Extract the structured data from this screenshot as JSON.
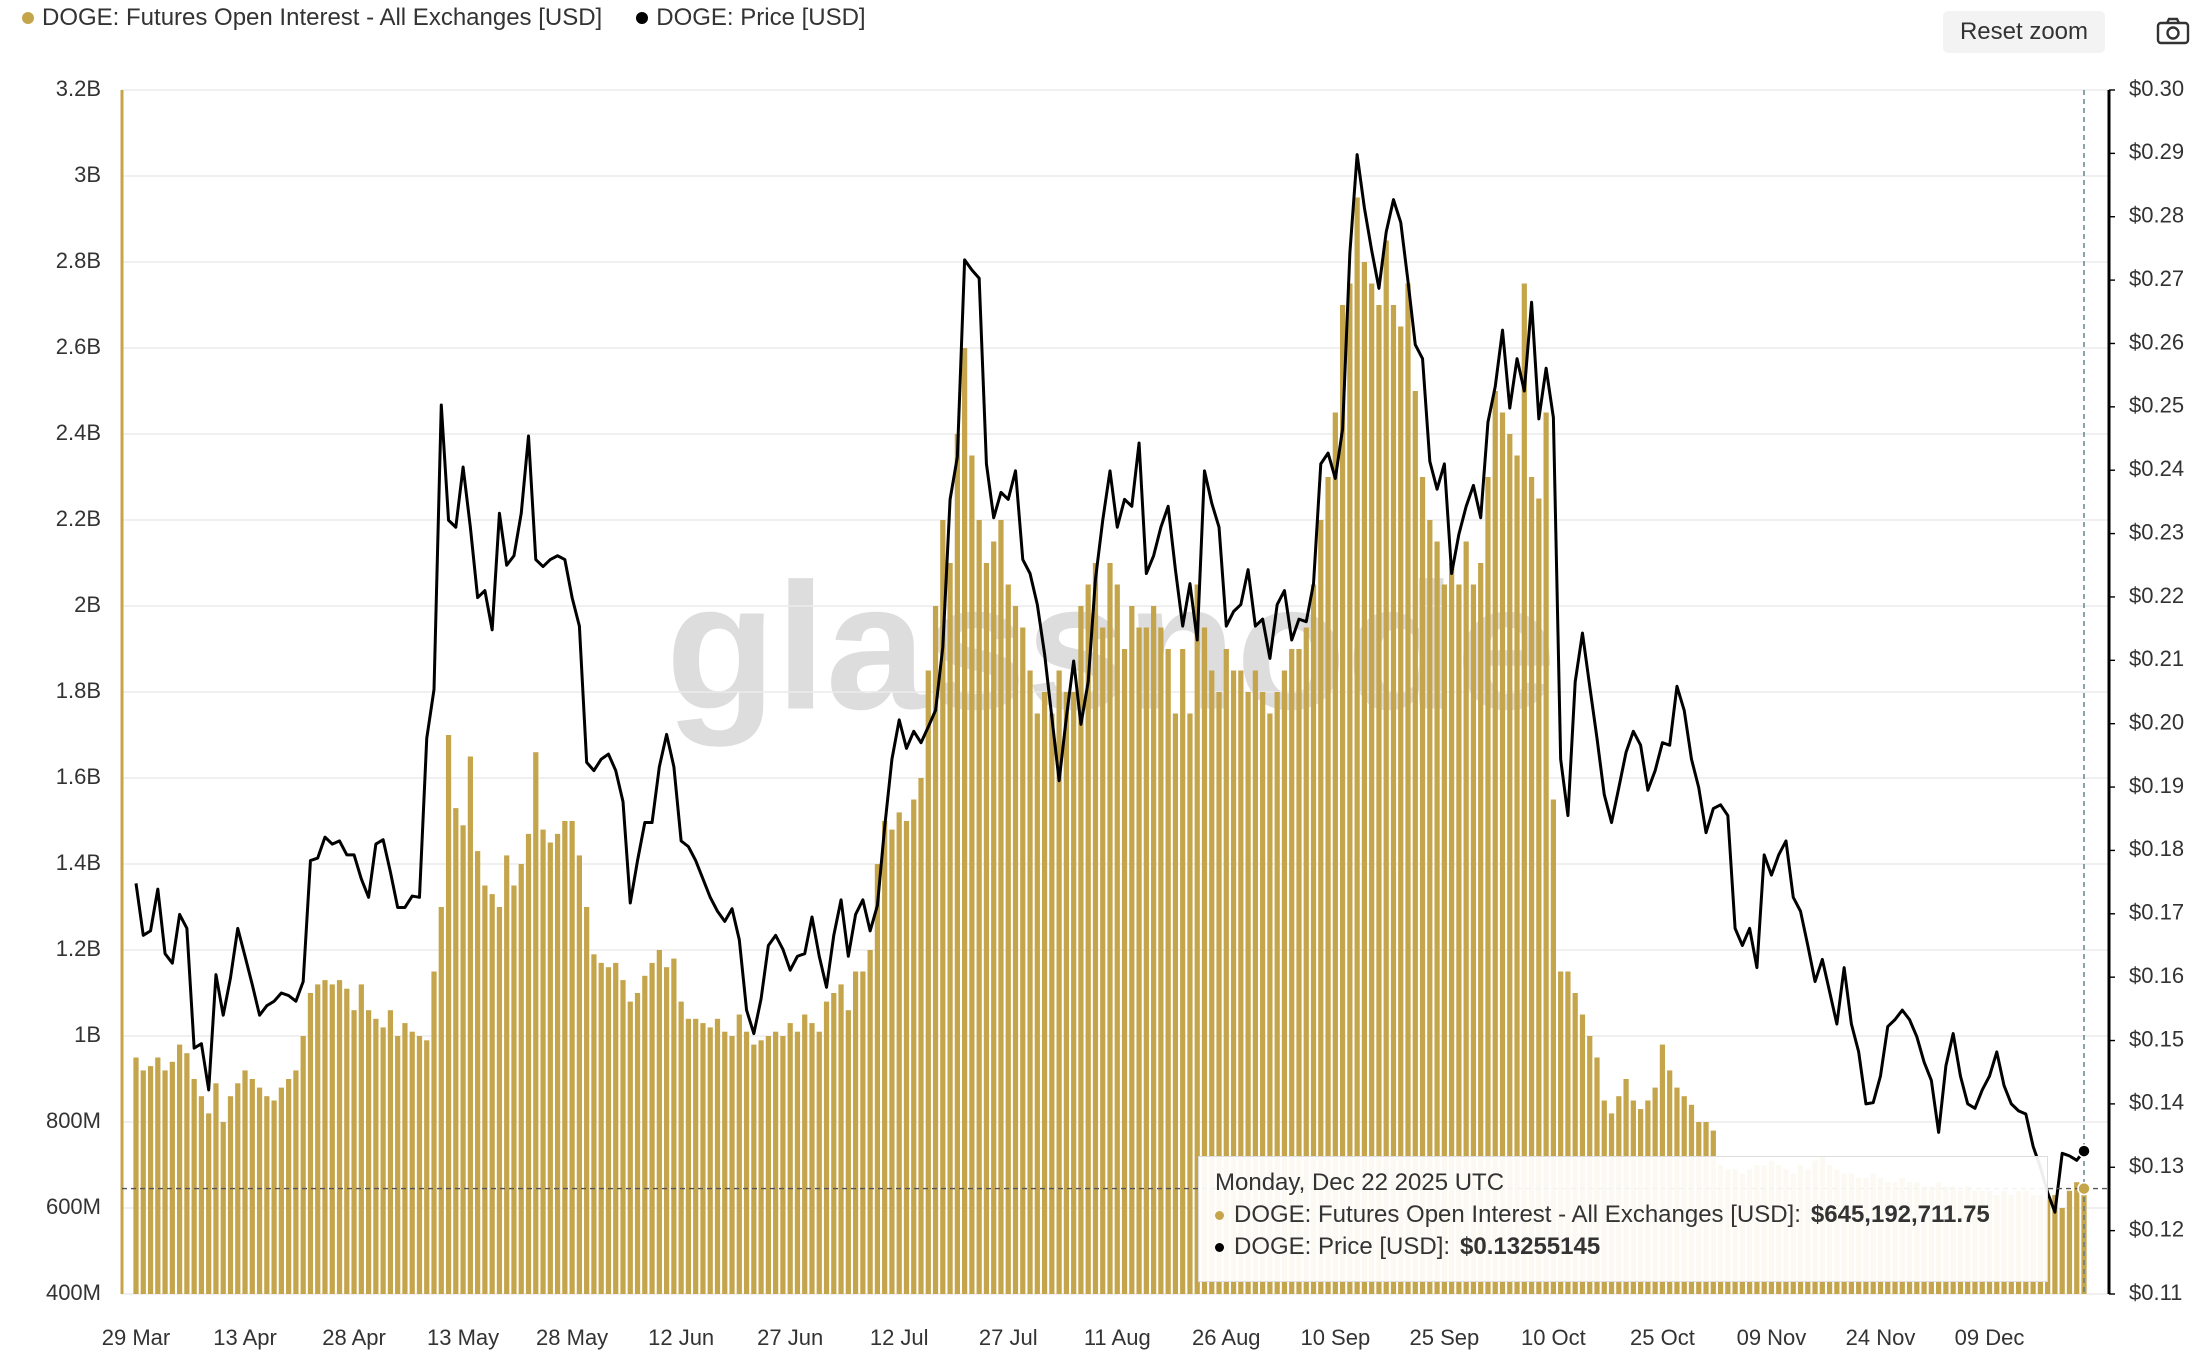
{
  "chart_data": {
    "type": "bar",
    "watermark": "glassnode",
    "buttons": {
      "reset_zoom": "Reset zoom"
    },
    "categories": [
      "29 Mar",
      null,
      null,
      null,
      null,
      null,
      null,
      null,
      null,
      null,
      null,
      null,
      null,
      null,
      null,
      "13 Apr",
      null,
      null,
      null,
      null,
      null,
      null,
      null,
      null,
      null,
      null,
      null,
      null,
      null,
      null,
      "28 Apr",
      null,
      null,
      null,
      null,
      null,
      null,
      null,
      null,
      null,
      null,
      null,
      null,
      null,
      null,
      "13 May",
      null,
      null,
      null,
      null,
      null,
      null,
      null,
      null,
      null,
      null,
      null,
      null,
      null,
      null,
      "28 May",
      null,
      null,
      null,
      null,
      null,
      null,
      null,
      null,
      null,
      null,
      null,
      null,
      null,
      null,
      "12 Jun",
      null,
      null,
      null,
      null,
      null,
      null,
      null,
      null,
      null,
      null,
      null,
      null,
      null,
      null,
      "27 Jun",
      null,
      null,
      null,
      null,
      null,
      null,
      null,
      null,
      null,
      null,
      null,
      null,
      null,
      null,
      "12 Jul",
      null,
      null,
      null,
      null,
      null,
      null,
      null,
      null,
      null,
      null,
      null,
      null,
      null,
      null,
      "27 Jul",
      null,
      null,
      null,
      null,
      null,
      null,
      null,
      null,
      null,
      null,
      null,
      null,
      null,
      null,
      "11 Aug",
      null,
      null,
      null,
      null,
      null,
      null,
      null,
      null,
      null,
      null,
      null,
      null,
      null,
      null,
      "26 Aug",
      null,
      null,
      null,
      null,
      null,
      null,
      null,
      null,
      null,
      null,
      null,
      null,
      null,
      null,
      "10 Sep",
      null,
      null,
      null,
      null,
      null,
      null,
      null,
      null,
      null,
      null,
      null,
      null,
      null,
      null,
      "25 Sep",
      null,
      null,
      null,
      null,
      null,
      null,
      null,
      null,
      null,
      null,
      null,
      null,
      null,
      null,
      "10 Oct",
      null,
      null,
      null,
      null,
      null,
      null,
      null,
      null,
      null,
      null,
      null,
      null,
      null,
      null,
      "25 Oct",
      null,
      null,
      null,
      null,
      null,
      null,
      null,
      null,
      null,
      null,
      null,
      null,
      null,
      null,
      "09 Nov",
      null,
      null,
      null,
      null,
      null,
      null,
      null,
      null,
      null,
      null,
      null,
      null,
      null,
      null,
      "24 Nov",
      null,
      null,
      null,
      null,
      null,
      null,
      null,
      null,
      null,
      null,
      null,
      null,
      null,
      null,
      "09 Dec",
      null,
      null,
      null,
      null,
      null,
      null,
      null,
      null,
      null,
      null,
      null,
      null,
      null
    ],
    "series": [
      {
        "name": "DOGE: Futures Open Interest - All Exchanges [USD]",
        "color": "#c5a54c",
        "type": "bar",
        "axis": "y",
        "values": [
          950000000,
          920000000,
          930000000,
          950000000,
          920000000,
          940000000,
          980000000,
          960000000,
          900000000,
          860000000,
          820000000,
          890000000,
          800000000,
          860000000,
          890000000,
          920000000,
          900000000,
          880000000,
          860000000,
          850000000,
          880000000,
          900000000,
          920000000,
          1000000000,
          1100000000,
          1120000000,
          1130000000,
          1120000000,
          1130000000,
          1110000000,
          1060000000,
          1120000000,
          1060000000,
          1040000000,
          1020000000,
          1060000000,
          1000000000,
          1030000000,
          1010000000,
          1000000000,
          990000000,
          1150000000,
          1300000000,
          1700000000,
          1530000000,
          1490000000,
          1650000000,
          1430000000,
          1350000000,
          1330000000,
          1300000000,
          1420000000,
          1350000000,
          1400000000,
          1470000000,
          1660000000,
          1480000000,
          1450000000,
          1470000000,
          1500000000,
          1500000000,
          1420000000,
          1300000000,
          1190000000,
          1170000000,
          1160000000,
          1170000000,
          1130000000,
          1080000000,
          1100000000,
          1140000000,
          1170000000,
          1200000000,
          1160000000,
          1180000000,
          1080000000,
          1040000000,
          1040000000,
          1030000000,
          1020000000,
          1040000000,
          1010000000,
          1000000000,
          1050000000,
          1010000000,
          980000000,
          990000000,
          1000000000,
          1010000000,
          1000000000,
          1030000000,
          1010000000,
          1050000000,
          1030000000,
          1010000000,
          1080000000,
          1100000000,
          1120000000,
          1060000000,
          1150000000,
          1150000000,
          1200000000,
          1400000000,
          1500000000,
          1480000000,
          1520000000,
          1500000000,
          1550000000,
          1600000000,
          1850000000,
          2000000000,
          2200000000,
          2100000000,
          2400000000,
          2600000000,
          2350000000,
          2200000000,
          2100000000,
          2150000000,
          2200000000,
          2050000000,
          2000000000,
          1950000000,
          1850000000,
          1750000000,
          1800000000,
          1750000000,
          1850000000,
          1800000000,
          1800000000,
          2000000000,
          2050000000,
          2100000000,
          1950000000,
          2100000000,
          2050000000,
          1900000000,
          2000000000,
          1950000000,
          1950000000,
          2000000000,
          1950000000,
          1900000000,
          1750000000,
          1900000000,
          1750000000,
          2050000000,
          1950000000,
          1850000000,
          1800000000,
          1900000000,
          1850000000,
          1850000000,
          1800000000,
          1850000000,
          1800000000,
          1750000000,
          1800000000,
          1850000000,
          1900000000,
          1900000000,
          1950000000,
          2050000000,
          2200000000,
          2300000000,
          2450000000,
          2700000000,
          2750000000,
          2950000000,
          2800000000,
          2750000000,
          2700000000,
          2850000000,
          2700000000,
          2650000000,
          2750000000,
          2500000000,
          2300000000,
          2200000000,
          2150000000,
          2050000000,
          2100000000,
          2050000000,
          2150000000,
          2050000000,
          2100000000,
          2300000000,
          2500000000,
          2450000000,
          2400000000,
          2350000000,
          2750000000,
          2300000000,
          2250000000,
          2450000000,
          1550000000,
          1150000000,
          1150000000,
          1100000000,
          1050000000,
          1000000000,
          950000000,
          850000000,
          820000000,
          860000000,
          900000000,
          850000000,
          830000000,
          850000000,
          880000000,
          980000000,
          920000000,
          880000000,
          860000000,
          840000000,
          800000000,
          800000000,
          780000000,
          700000000,
          690000000,
          690000000,
          680000000,
          690000000,
          700000000,
          700000000,
          710000000,
          700000000,
          690000000,
          680000000,
          700000000,
          690000000,
          710000000,
          720000000,
          700000000,
          690000000,
          680000000,
          680000000,
          670000000,
          670000000,
          680000000,
          670000000,
          660000000,
          660000000,
          670000000,
          660000000,
          660000000,
          650000000,
          650000000,
          660000000,
          650000000,
          650000000,
          640000000,
          650000000,
          640000000,
          640000000,
          640000000,
          630000000,
          640000000,
          630000000,
          640000000,
          640000000,
          630000000,
          630000000,
          620000000,
          630000000,
          600000000,
          640000000,
          660000000,
          645192711.75
        ]
      },
      {
        "name": "DOGE: Price [USD]",
        "color": "#000000",
        "type": "line",
        "axis": "y2",
        "values": [
          0.1748,
          0.1666,
          0.1673,
          0.1739,
          0.1637,
          0.1622,
          0.1699,
          0.1677,
          0.1488,
          0.1495,
          0.1422,
          0.1604,
          0.154,
          0.1599,
          0.1677,
          0.1633,
          0.1588,
          0.154,
          0.1555,
          0.1562,
          0.1575,
          0.1571,
          0.1562,
          0.1593,
          0.1784,
          0.1788,
          0.1821,
          0.181,
          0.1815,
          0.1793,
          0.1793,
          0.1755,
          0.1726,
          0.181,
          0.1817,
          0.1766,
          0.171,
          0.171,
          0.1728,
          0.1726,
          0.1977,
          0.2054,
          0.2503,
          0.2321,
          0.231,
          0.2405,
          0.231,
          0.2199,
          0.221,
          0.2148,
          0.2332,
          0.225,
          0.2265,
          0.2332,
          0.2454,
          0.2259,
          0.2248,
          0.2259,
          0.2265,
          0.2259,
          0.2199,
          0.2154,
          0.1939,
          0.1926,
          0.1944,
          0.1952,
          0.1926,
          0.1877,
          0.1717,
          0.1784,
          0.1844,
          0.1844,
          0.1932,
          0.1983,
          0.1932,
          0.1815,
          0.1806,
          0.1784,
          0.1755,
          0.1726,
          0.1704,
          0.1688,
          0.1708,
          0.1659,
          0.1548,
          0.1511,
          0.1566,
          0.165,
          0.1666,
          0.1644,
          0.1611,
          0.1633,
          0.1637,
          0.1695,
          0.1633,
          0.1584,
          0.1666,
          0.1722,
          0.1633,
          0.1699,
          0.1722,
          0.1673,
          0.1713,
          0.1837,
          0.1944,
          0.2006,
          0.1961,
          0.1988,
          0.197,
          0.1995,
          0.2021,
          0.2121,
          0.2354,
          0.2421,
          0.2732,
          0.2716,
          0.2703,
          0.241,
          0.2325,
          0.2365,
          0.2354,
          0.2399,
          0.2259,
          0.2237,
          0.2188,
          0.211,
          0.201,
          0.191,
          0.201,
          0.2099,
          0.1999,
          0.2066,
          0.2228,
          0.2321,
          0.2399,
          0.231,
          0.2354,
          0.2343,
          0.2443,
          0.2237,
          0.2265,
          0.231,
          0.2343,
          0.2243,
          0.2154,
          0.2221,
          0.2132,
          0.2399,
          0.2348,
          0.231,
          0.2154,
          0.2177,
          0.2188,
          0.2243,
          0.2154,
          0.2165,
          0.2103,
          0.2188,
          0.221,
          0.2132,
          0.2165,
          0.2161,
          0.2221,
          0.241,
          0.2427,
          0.2387,
          0.2465,
          0.2743,
          0.2898,
          0.2814,
          0.2747,
          0.2687,
          0.2776,
          0.2827,
          0.2791,
          0.2698,
          0.2598,
          0.2576,
          0.2414,
          0.237,
          0.241,
          0.2237,
          0.2299,
          0.2343,
          0.2376,
          0.2325,
          0.2476,
          0.2532,
          0.2621,
          0.2498,
          0.2576,
          0.2525,
          0.2665,
          0.2481,
          0.2561,
          0.2483,
          0.1944,
          0.1855,
          0.2066,
          0.2143,
          0.2059,
          0.1977,
          0.1888,
          0.1844,
          0.1899,
          0.1955,
          0.1988,
          0.1966,
          0.1895,
          0.1926,
          0.197,
          0.1966,
          0.2059,
          0.2021,
          0.1944,
          0.1899,
          0.1828,
          0.1866,
          0.1872,
          0.1855,
          0.1677,
          0.165,
          0.1677,
          0.1615,
          0.1793,
          0.1761,
          0.1793,
          0.1815,
          0.1726,
          0.1704,
          0.165,
          0.1593,
          0.1628,
          0.1577,
          0.1526,
          0.1615,
          0.1526,
          0.1482,
          0.14,
          0.1402,
          0.1444,
          0.1522,
          0.1533,
          0.1548,
          0.1533,
          0.1506,
          0.1466,
          0.1437,
          0.1355,
          0.146,
          0.1511,
          0.1444,
          0.14,
          0.1393,
          0.1422,
          0.1444,
          0.1482,
          0.1429,
          0.14,
          0.1389,
          0.1384,
          0.1333,
          0.13,
          0.126,
          0.1229,
          0.1322,
          0.1318,
          0.1311,
          0.13255145
        ]
      }
    ],
    "ylim": [
      400000000,
      3200000000
    ],
    "yticks": [
      {
        "value": 400000000,
        "label": "400M"
      },
      {
        "value": 600000000,
        "label": "600M"
      },
      {
        "value": 800000000,
        "label": "800M"
      },
      {
        "value": 1000000000,
        "label": "1B"
      },
      {
        "value": 1200000000,
        "label": "1.2B"
      },
      {
        "value": 1400000000,
        "label": "1.4B"
      },
      {
        "value": 1600000000,
        "label": "1.6B"
      },
      {
        "value": 1800000000,
        "label": "1.8B"
      },
      {
        "value": 2000000000,
        "label": "2B"
      },
      {
        "value": 2200000000,
        "label": "2.2B"
      },
      {
        "value": 2400000000,
        "label": "2.4B"
      },
      {
        "value": 2600000000,
        "label": "2.6B"
      },
      {
        "value": 2800000000,
        "label": "2.8B"
      },
      {
        "value": 3000000000,
        "label": "3B"
      },
      {
        "value": 3200000000,
        "label": "3.2B"
      }
    ],
    "y2lim": [
      0.11,
      0.3
    ],
    "y2ticks": [
      {
        "value": 0.11,
        "label": "$0.11"
      },
      {
        "value": 0.12,
        "label": "$0.12"
      },
      {
        "value": 0.13,
        "label": "$0.13"
      },
      {
        "value": 0.14,
        "label": "$0.14"
      },
      {
        "value": 0.15,
        "label": "$0.15"
      },
      {
        "value": 0.16,
        "label": "$0.16"
      },
      {
        "value": 0.17,
        "label": "$0.17"
      },
      {
        "value": 0.18,
        "label": "$0.18"
      },
      {
        "value": 0.19,
        "label": "$0.19"
      },
      {
        "value": 0.2,
        "label": "$0.20"
      },
      {
        "value": 0.21,
        "label": "$0.21"
      },
      {
        "value": 0.22,
        "label": "$0.22"
      },
      {
        "value": 0.23,
        "label": "$0.23"
      },
      {
        "value": 0.24,
        "label": "$0.24"
      },
      {
        "value": 0.25,
        "label": "$0.25"
      },
      {
        "value": 0.26,
        "label": "$0.26"
      },
      {
        "value": 0.27,
        "label": "$0.27"
      },
      {
        "value": 0.28,
        "label": "$0.28"
      },
      {
        "value": 0.29,
        "label": "$0.29"
      },
      {
        "value": 0.3,
        "label": "$0.30"
      }
    ],
    "grid": true,
    "legend": "top-left",
    "tooltip": {
      "title": "Monday, Dec 22 2025 UTC",
      "entries": [
        {
          "name": "DOGE: Futures Open Interest - All Exchanges [USD]:",
          "value_label": "$645,192,711.75"
        },
        {
          "name": "DOGE: Price [USD]:",
          "value_label": "$0.13255145"
        }
      ]
    }
  }
}
